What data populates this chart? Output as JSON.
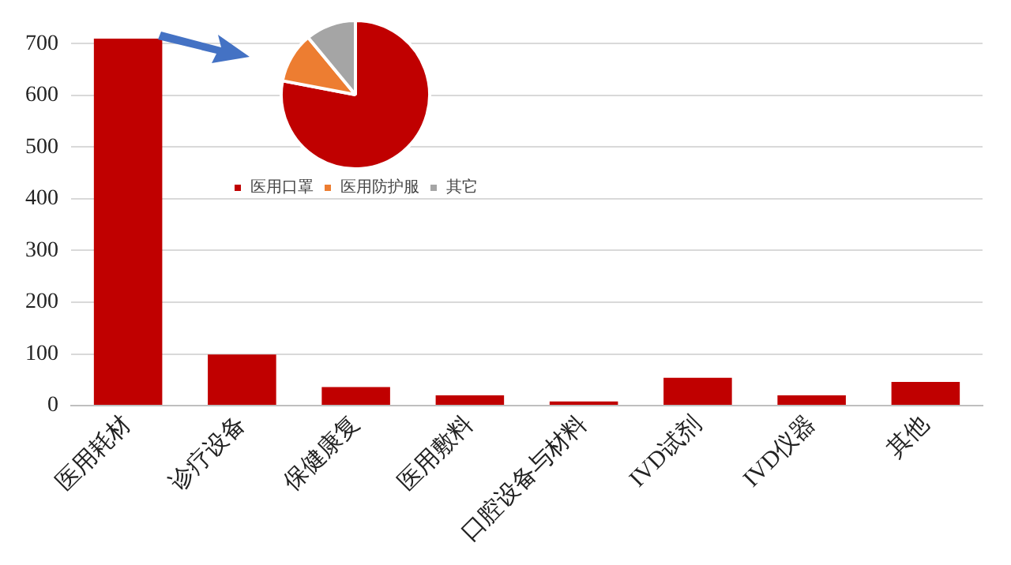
{
  "chart_data": [
    {
      "type": "bar",
      "categories": [
        "医用耗材",
        "诊疗设备",
        "保健康复",
        "医用敷料",
        "口腔设备与材料",
        "IVD试剂",
        "IVD仪器",
        "其他"
      ],
      "values": [
        710,
        99,
        36,
        20,
        8,
        54,
        20,
        46
      ],
      "color": "#c00000",
      "ylim": [
        0,
        710
      ],
      "yticks": [
        0,
        100,
        200,
        300,
        400,
        500,
        600,
        700
      ],
      "grid": "y"
    },
    {
      "type": "pie",
      "categories": [
        "医用口罩",
        "医用防护服",
        "其它"
      ],
      "values": [
        78,
        11,
        11
      ],
      "colors": [
        "#c00000",
        "#ed7d31",
        "#a5a5a5"
      ],
      "legend": "bottom"
    }
  ]
}
